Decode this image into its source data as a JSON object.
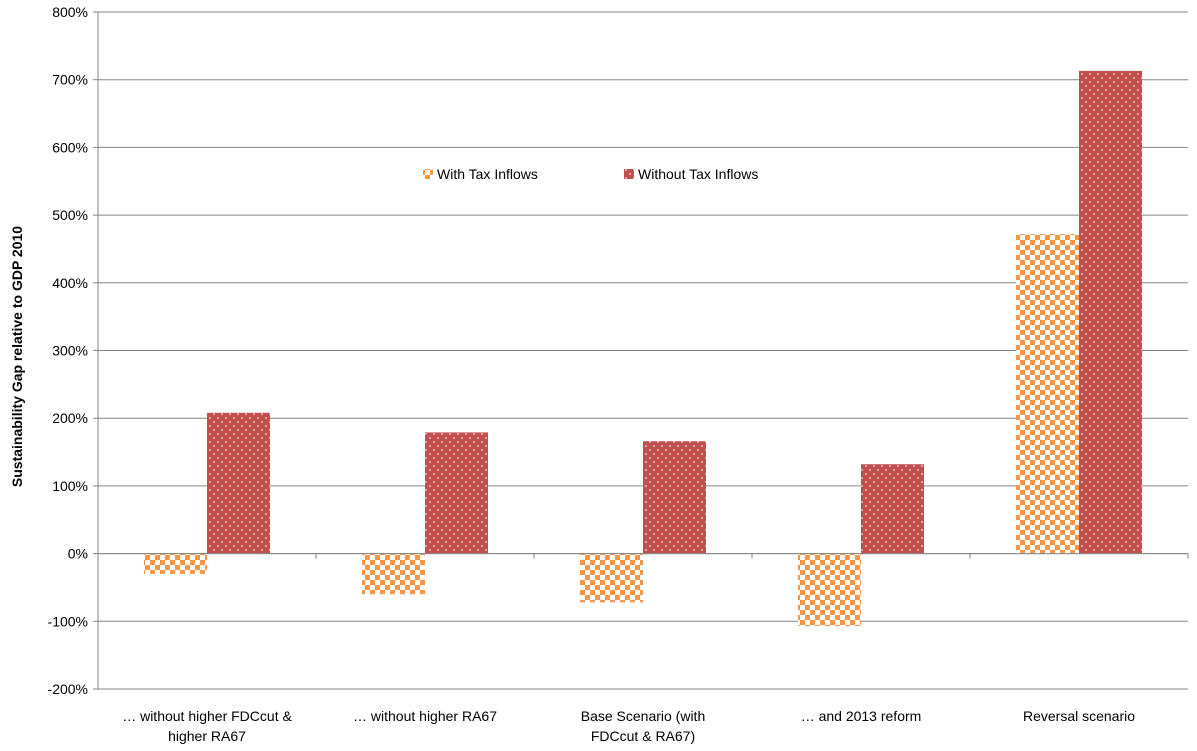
{
  "chart_data": {
    "type": "bar",
    "title": "",
    "xlabel": "",
    "ylabel": "Sustainability Gap relative to GDP 2010",
    "ylim": [
      -200,
      800
    ],
    "yticks": [
      "800%",
      "700%",
      "600%",
      "500%",
      "400%",
      "300%",
      "200%",
      "100%",
      "0%",
      "-100%",
      "-200%"
    ],
    "ytick_values": [
      800,
      700,
      600,
      500,
      400,
      300,
      200,
      100,
      0,
      -100,
      -200
    ],
    "categories": [
      [
        "… without higher FDCcut &",
        "higher RA67"
      ],
      [
        "… without higher RA67"
      ],
      [
        "Base Scenario (with",
        "FDCcut  & RA67)"
      ],
      [
        "… and 2013 reform"
      ],
      [
        "Reversal scenario"
      ]
    ],
    "series": [
      {
        "name": "With Tax Inflows",
        "values": [
          -30,
          -60,
          -72,
          -107,
          472
        ],
        "color": "#f79646",
        "pattern": "checker"
      },
      {
        "name": "Without Tax Inflows",
        "values": [
          208,
          179,
          166,
          132,
          713
        ],
        "color": "#c0504d",
        "pattern": "dots"
      }
    ],
    "legend_position": "top-center",
    "grid": true
  }
}
